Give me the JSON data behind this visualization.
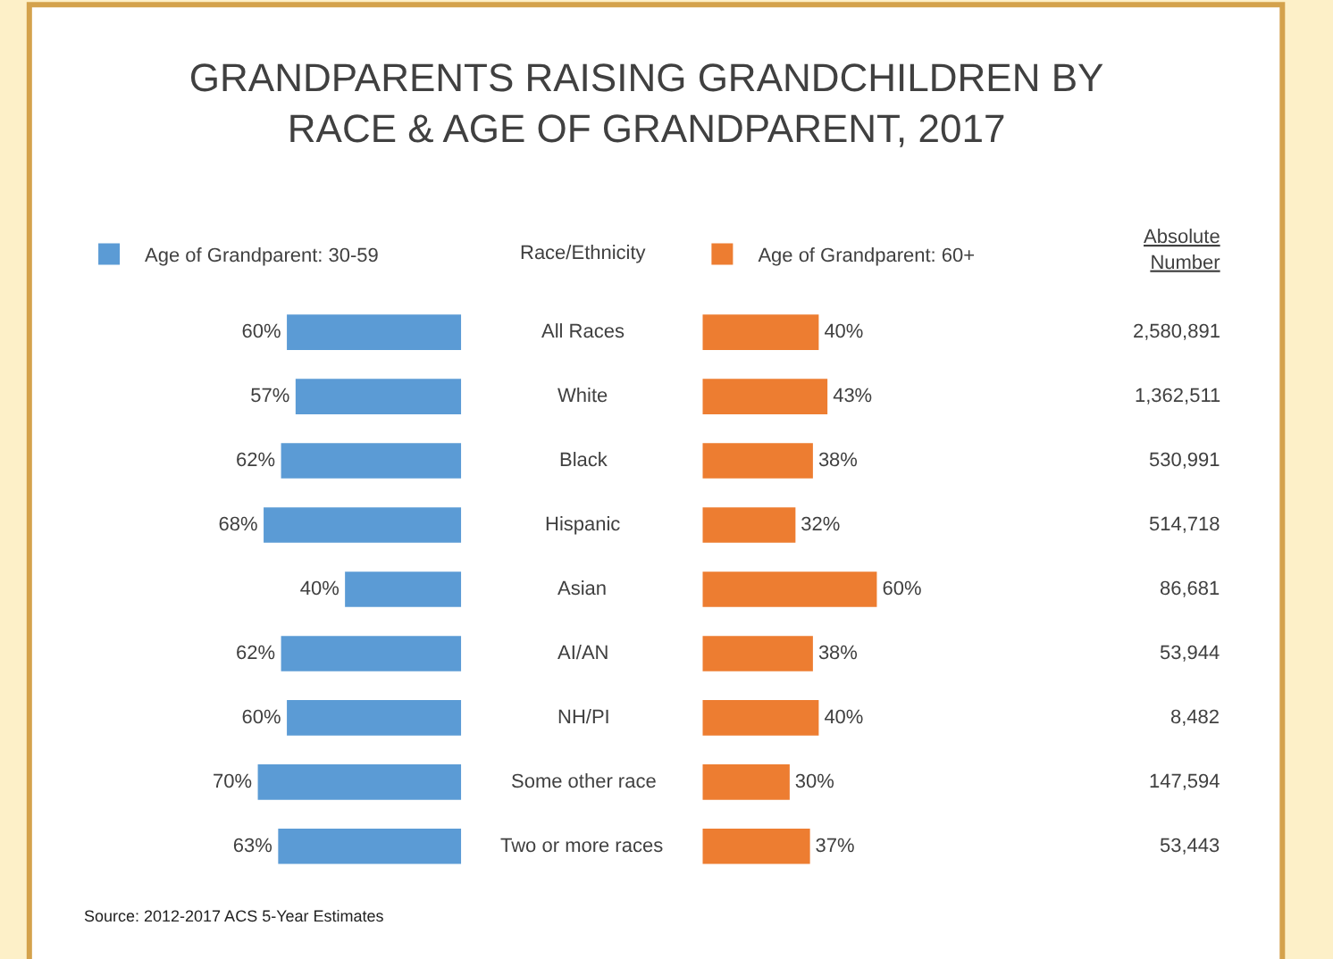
{
  "chart_data": [
    {
      "type": "bar",
      "orientation": "horizontal",
      "title": "GRANDPARENTS RAISING GRANDCHILDREN BY\nRACE & AGE OF GRANDPARENT, 2017",
      "ylabel": "Race/Ethnicity",
      "legend": "top",
      "tick_labels": false,
      "categories": [
        "All Races",
        "White",
        "Black",
        "Hispanic",
        "Asian",
        "AI/AN",
        "NH/PI",
        "Some other race",
        "Two or more races"
      ],
      "series": [
        {
          "name": "Age of Grandparent: 30-59",
          "color": "#5b9bd5",
          "values": [
            60,
            57,
            62,
            68,
            40,
            62,
            60,
            70,
            63
          ],
          "value_labels": [
            "60%",
            "57%",
            "62%",
            "68%",
            "40%",
            "62%",
            "60%",
            "70%",
            "63%"
          ]
        }
      ],
      "annotations": [
        "Source: 2012-2017 ACS 5-Year Estimates"
      ]
    },
    {
      "type": "bar",
      "orientation": "horizontal",
      "legend": "top",
      "tick_labels": false,
      "series": [
        {
          "name": "Age of Grandparent: 60+",
          "color": "#ed7d31",
          "values": [
            40,
            43,
            38,
            32,
            60,
            38,
            40,
            30,
            37
          ],
          "value_labels": [
            "40%",
            "43%",
            "38%",
            "32%",
            "60%",
            "38%",
            "40%",
            "30%",
            "37%"
          ]
        }
      ]
    },
    {
      "type": "other",
      "title": "Absolute Number",
      "annotations": [
        "2,580,891",
        "1,362,511",
        "530,991",
        "514,718",
        "86,681",
        "53,944",
        "8,482",
        "147,594",
        "53,443"
      ]
    }
  ]
}
